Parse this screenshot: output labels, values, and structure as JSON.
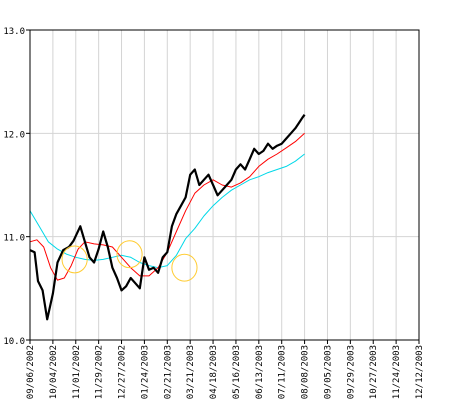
{
  "chart_data": {
    "type": "line",
    "title": "",
    "xlabel": "",
    "ylabel": "",
    "ylim": [
      10.0,
      13.0
    ],
    "yticks": [
      {
        "value": 10.0,
        "label": "10.0"
      },
      {
        "value": 11.0,
        "label": "11.0"
      },
      {
        "value": 12.0,
        "label": "12.0"
      },
      {
        "value": 13.0,
        "label": "13.0"
      }
    ],
    "xticks": [
      "09/06/2002",
      "10/04/2002",
      "11/01/2002",
      "11/29/2002",
      "12/27/2002",
      "01/24/2003",
      "02/21/2003",
      "03/21/2003",
      "04/18/2003",
      "05/16/2003",
      "06/13/2003",
      "07/11/2003",
      "08/08/2003",
      "09/05/2003",
      "09/29/2003",
      "10/27/2003",
      "11/24/2003",
      "12/12/2003"
    ],
    "grid": true,
    "series": [
      {
        "color": "#000000",
        "values": [
          [
            0,
            10.87
          ],
          [
            0.2,
            10.85
          ],
          [
            0.35,
            10.57
          ],
          [
            0.55,
            10.48
          ],
          [
            0.75,
            10.2
          ],
          [
            1.0,
            10.45
          ],
          [
            1.2,
            10.75
          ],
          [
            1.45,
            10.87
          ],
          [
            1.7,
            10.9
          ],
          [
            1.9,
            10.96
          ],
          [
            2.2,
            11.1
          ],
          [
            2.4,
            10.95
          ],
          [
            2.6,
            10.8
          ],
          [
            2.8,
            10.75
          ],
          [
            3.0,
            10.88
          ],
          [
            3.2,
            11.05
          ],
          [
            3.4,
            10.9
          ],
          [
            3.6,
            10.7
          ],
          [
            3.8,
            10.6
          ],
          [
            4.0,
            10.48
          ],
          [
            4.2,
            10.52
          ],
          [
            4.4,
            10.6
          ],
          [
            4.6,
            10.55
          ],
          [
            4.8,
            10.5
          ],
          [
            5.0,
            10.8
          ],
          [
            5.2,
            10.68
          ],
          [
            5.4,
            10.7
          ],
          [
            5.6,
            10.65
          ],
          [
            5.8,
            10.8
          ],
          [
            6.0,
            10.85
          ],
          [
            6.2,
            11.1
          ],
          [
            6.4,
            11.22
          ],
          [
            6.6,
            11.3
          ],
          [
            6.8,
            11.38
          ],
          [
            7.0,
            11.6
          ],
          [
            7.2,
            11.65
          ],
          [
            7.4,
            11.5
          ],
          [
            7.6,
            11.55
          ],
          [
            7.8,
            11.6
          ],
          [
            8.0,
            11.5
          ],
          [
            8.2,
            11.4
          ],
          [
            8.4,
            11.45
          ],
          [
            8.6,
            11.5
          ],
          [
            8.8,
            11.55
          ],
          [
            9.0,
            11.65
          ],
          [
            9.2,
            11.7
          ],
          [
            9.4,
            11.65
          ],
          [
            9.6,
            11.75
          ],
          [
            9.8,
            11.85
          ],
          [
            10.0,
            11.8
          ],
          [
            10.2,
            11.83
          ],
          [
            10.4,
            11.9
          ],
          [
            10.6,
            11.85
          ],
          [
            10.8,
            11.88
          ],
          [
            11.0,
            11.9
          ],
          [
            11.2,
            11.95
          ],
          [
            11.4,
            12.0
          ],
          [
            11.6,
            12.05
          ],
          [
            11.75,
            12.1
          ],
          [
            11.9,
            12.15
          ],
          [
            12.0,
            12.18
          ]
        ]
      },
      {
        "color": "#ff0000",
        "values": [
          [
            0,
            10.95
          ],
          [
            0.3,
            10.97
          ],
          [
            0.6,
            10.9
          ],
          [
            0.9,
            10.7
          ],
          [
            1.2,
            10.58
          ],
          [
            1.5,
            10.6
          ],
          [
            1.8,
            10.72
          ],
          [
            2.1,
            10.88
          ],
          [
            2.4,
            10.95
          ],
          [
            2.8,
            10.93
          ],
          [
            3.2,
            10.92
          ],
          [
            3.6,
            10.9
          ],
          [
            4.0,
            10.8
          ],
          [
            4.4,
            10.7
          ],
          [
            4.8,
            10.62
          ],
          [
            5.2,
            10.62
          ],
          [
            5.6,
            10.7
          ],
          [
            6.0,
            10.85
          ],
          [
            6.4,
            11.05
          ],
          [
            6.8,
            11.25
          ],
          [
            7.2,
            11.42
          ],
          [
            7.6,
            11.5
          ],
          [
            8.0,
            11.55
          ],
          [
            8.4,
            11.5
          ],
          [
            8.8,
            11.48
          ],
          [
            9.2,
            11.52
          ],
          [
            9.6,
            11.58
          ],
          [
            10.0,
            11.68
          ],
          [
            10.4,
            11.75
          ],
          [
            10.8,
            11.8
          ],
          [
            11.2,
            11.86
          ],
          [
            11.6,
            11.92
          ],
          [
            12.0,
            12.0
          ]
        ]
      },
      {
        "color": "#00d8e8",
        "values": [
          [
            0,
            11.25
          ],
          [
            0.4,
            11.1
          ],
          [
            0.8,
            10.95
          ],
          [
            1.2,
            10.88
          ],
          [
            1.6,
            10.83
          ],
          [
            2.0,
            10.8
          ],
          [
            2.4,
            10.78
          ],
          [
            2.8,
            10.77
          ],
          [
            3.2,
            10.78
          ],
          [
            3.6,
            10.8
          ],
          [
            4.0,
            10.82
          ],
          [
            4.4,
            10.8
          ],
          [
            4.8,
            10.75
          ],
          [
            5.2,
            10.72
          ],
          [
            5.6,
            10.7
          ],
          [
            6.0,
            10.72
          ],
          [
            6.4,
            10.82
          ],
          [
            6.8,
            10.98
          ],
          [
            7.2,
            11.08
          ],
          [
            7.6,
            11.2
          ],
          [
            8.0,
            11.3
          ],
          [
            8.4,
            11.38
          ],
          [
            8.8,
            11.45
          ],
          [
            9.2,
            11.5
          ],
          [
            9.6,
            11.55
          ],
          [
            10.0,
            11.58
          ],
          [
            10.4,
            11.62
          ],
          [
            10.8,
            11.65
          ],
          [
            11.2,
            11.68
          ],
          [
            11.6,
            11.73
          ],
          [
            12.0,
            11.8
          ]
        ]
      }
    ],
    "annotations": [
      {
        "shape": "ellipse",
        "color": "#ffcc33",
        "x": 1.95,
        "y": 10.78,
        "rx": 0.55,
        "ry": 0.13
      },
      {
        "shape": "ellipse",
        "color": "#ffcc33",
        "x": 4.35,
        "y": 10.83,
        "rx": 0.55,
        "ry": 0.13
      },
      {
        "shape": "ellipse",
        "color": "#ffcc33",
        "x": 6.75,
        "y": 10.7,
        "rx": 0.55,
        "ry": 0.13
      }
    ]
  }
}
